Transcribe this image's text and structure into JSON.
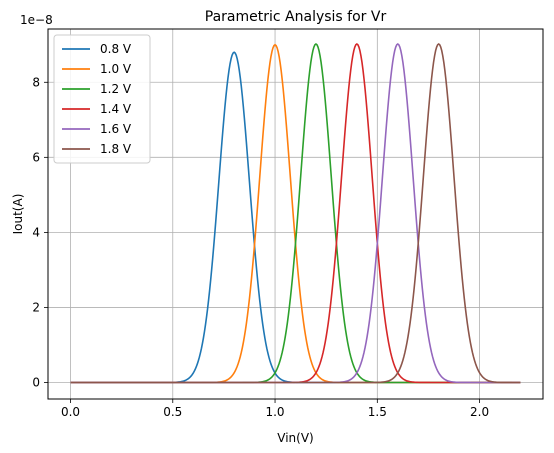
{
  "chart_data": {
    "type": "line",
    "title": "Parametric Analysis for Vr",
    "xlabel": "Vin(V)",
    "ylabel": "Iout(A)",
    "offset_label": "1e−8",
    "xlim": [
      -0.11,
      2.31
    ],
    "ylim": [
      -0.44,
      9.42
    ],
    "xticks": [
      0.0,
      0.5,
      1.0,
      1.5,
      2.0
    ],
    "xtick_labels": [
      "0.0",
      "0.5",
      "1.0",
      "1.5",
      "2.0"
    ],
    "yticks": [
      0,
      2,
      4,
      6,
      8
    ],
    "ytick_labels": [
      "0",
      "2",
      "4",
      "6",
      "8"
    ],
    "grid": true,
    "legend": "upper-left",
    "x_range": [
      0.0,
      2.2
    ],
    "y_scale": "1e-8",
    "series": [
      {
        "name": "0.8 V",
        "color": "#1f77b4",
        "peak_x": 0.8,
        "peak_y": 8.8,
        "width": 0.075
      },
      {
        "name": "1.0 V",
        "color": "#ff7f0e",
        "peak_x": 1.0,
        "peak_y": 9.0,
        "width": 0.075
      },
      {
        "name": "1.2 V",
        "color": "#2ca02c",
        "peak_x": 1.2,
        "peak_y": 9.02,
        "width": 0.075
      },
      {
        "name": "1.4 V",
        "color": "#d62728",
        "peak_x": 1.4,
        "peak_y": 9.02,
        "width": 0.075
      },
      {
        "name": "1.6 V",
        "color": "#9467bd",
        "peak_x": 1.6,
        "peak_y": 9.02,
        "width": 0.075
      },
      {
        "name": "1.8 V",
        "color": "#8c564b",
        "peak_x": 1.8,
        "peak_y": 9.02,
        "width": 0.075
      }
    ]
  }
}
